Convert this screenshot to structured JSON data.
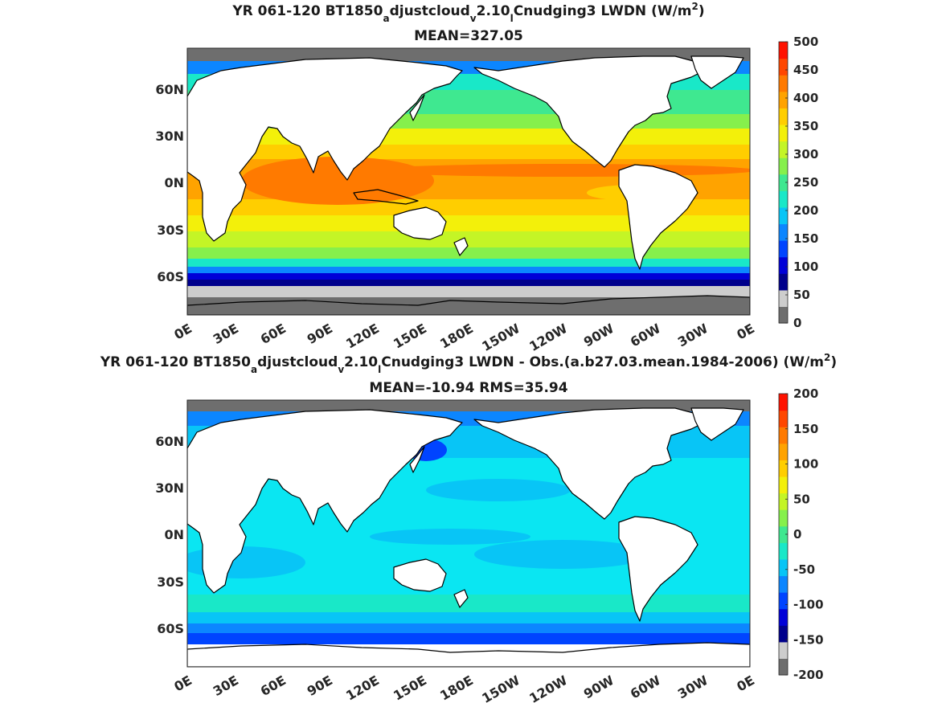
{
  "panels": [
    {
      "title_prefix": "YR 061-120 BT1850",
      "title_sub1": "a",
      "title_mid1": "djustcloud",
      "title_sub2": "v",
      "title_mid2": "2.10",
      "title_sub3": "l",
      "title_mid3": "Cnudging3 LWDN (W/m",
      "title_sup": "2",
      "title_end": ")",
      "stats": "MEAN=327.05",
      "colorbar_ticks": [
        "0",
        "50",
        "100",
        "150",
        "200",
        "250",
        "300",
        "350",
        "400",
        "450",
        "500"
      ],
      "colorbar_colors": [
        "#6e6e6e",
        "#cdcdcd",
        "#00008c",
        "#0000d8",
        "#0044ff",
        "#0c86ff",
        "#08c5f6",
        "#19e8c8",
        "#3fe890",
        "#86f04c",
        "#c4f526",
        "#f3f00a",
        "#ffce00",
        "#ffa300",
        "#ff7a00",
        "#ff4700",
        "#ff1200"
      ]
    },
    {
      "title_prefix": "YR 061-120 BT1850",
      "title_sub1": "a",
      "title_mid1": "djustcloud",
      "title_sub2": "v",
      "title_mid2": "2.10",
      "title_sub3": "l",
      "title_mid3": "Cnudging3 LWDN - Obs.(a.b27.03.mean.1984-2006) (W/m",
      "title_sup": "2",
      "title_end": ")",
      "stats": "MEAN=-10.94 RMS=35.94",
      "colorbar_ticks": [
        "-200",
        "-150",
        "-100",
        "-50",
        "0",
        "50",
        "100",
        "150",
        "200"
      ],
      "colorbar_colors": [
        "#6e6e6e",
        "#cdcdcd",
        "#00008c",
        "#0000d8",
        "#0044ff",
        "#0c86ff",
        "#08c5f6",
        "#19e8c8",
        "#3fe890",
        "#86f04c",
        "#c4f526",
        "#f3f00a",
        "#ffce00",
        "#ffa300",
        "#ff7a00",
        "#ff4700",
        "#ff1200"
      ]
    }
  ],
  "lat_labels": [
    "60N",
    "30N",
    "0N",
    "30S",
    "60S"
  ],
  "lon_labels": [
    "0E",
    "30E",
    "60E",
    "90E",
    "120E",
    "150E",
    "180E",
    "150W",
    "120W",
    "90W",
    "60W",
    "30W",
    "0E"
  ],
  "colors": {
    "land": "#ffffff",
    "coast": "#000000",
    "top_bg_sea": "#c4f526",
    "bottom_bg_sea": "#08d5f0"
  }
}
